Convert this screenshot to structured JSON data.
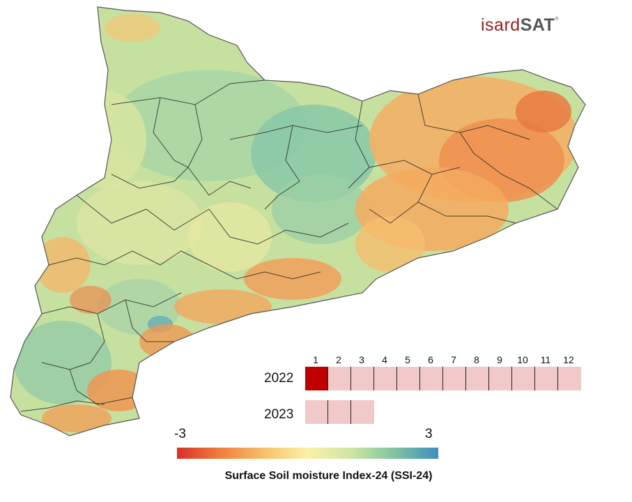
{
  "logo": {
    "part1": "isard",
    "part2": "SAT",
    "mark": "®"
  },
  "timeline": {
    "months": [
      "1",
      "2",
      "3",
      "4",
      "5",
      "6",
      "7",
      "8",
      "9",
      "10",
      "11",
      "12"
    ],
    "rows": [
      {
        "year": "2022",
        "active_month": 1,
        "months_shown": 12
      },
      {
        "year": "2023",
        "active_month": 0,
        "months_shown": 3
      }
    ],
    "colors": {
      "active": "#c00000",
      "inactive": "#f2c9c9"
    }
  },
  "legend": {
    "min_label": "-3",
    "max_label": "3",
    "title": "Surface Soil moisture Index-24 (SSI-24)",
    "colors": [
      "#d7312a",
      "#ef7f3d",
      "#f8c06a",
      "#fbf1a8",
      "#cfe6a2",
      "#7fc4a0",
      "#3f8dbd"
    ]
  },
  "map": {
    "region_fill_colors": {
      "wet": "#8fcfa8",
      "moist": "#bfe0a0",
      "neutral": "#f2e8a0",
      "dry": "#f4a55a",
      "very_dry": "#e06a3a"
    }
  }
}
